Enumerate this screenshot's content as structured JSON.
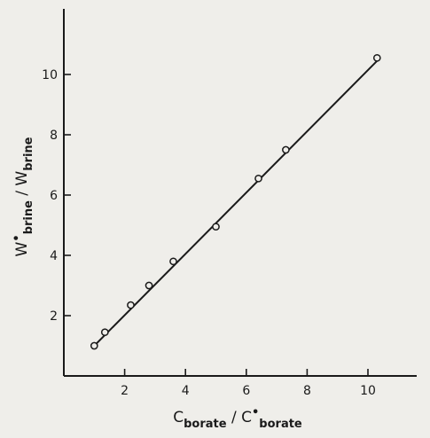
{
  "chart_data": {
    "type": "scatter",
    "xlabel": {
      "main1": "C",
      "sub1": "borate",
      "sep": " / ",
      "main2": "C",
      "sup2": "•",
      "sub2": "borate"
    },
    "ylabel": {
      "main1": "W",
      "sup1": "•",
      "sub1": "brine",
      "sep": " / ",
      "main2": "W",
      "sub2": "brine"
    },
    "xlim": [
      0,
      12
    ],
    "ylim": [
      0,
      12
    ],
    "x_ticks": [
      2,
      4,
      6,
      8,
      10
    ],
    "y_ticks": [
      2,
      4,
      6,
      8,
      10
    ],
    "grid": false,
    "series": [
      {
        "marker": "open-circle",
        "x": [
          1.0,
          1.35,
          2.2,
          2.8,
          3.6,
          5.0,
          6.4,
          7.3,
          10.3
        ],
        "y": [
          1.0,
          1.45,
          2.35,
          3.0,
          3.8,
          4.95,
          6.55,
          7.5,
          10.55
        ]
      }
    ],
    "fit_line": {
      "x": [
        1.0,
        10.3
      ],
      "y": [
        1.0,
        10.45
      ]
    },
    "colors": {
      "background": "#efeeea",
      "ink": "#1a1a1a"
    }
  }
}
